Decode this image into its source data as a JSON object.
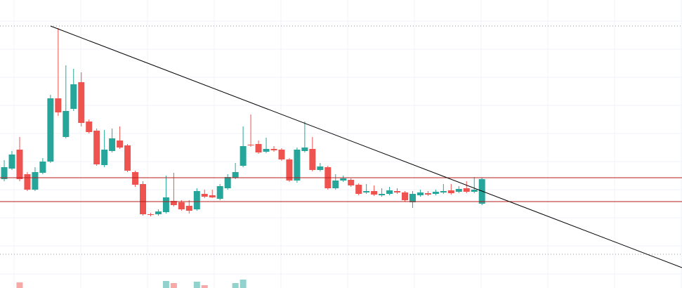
{
  "chart_data": {
    "type": "candlestick",
    "xlim": [
      -0.55,
      87.96
    ],
    "ylim": [
      0,
      410
    ],
    "up_color": "#26a69a",
    "down_color": "#ef5350",
    "open": [
      155,
      170,
      197,
      162,
      140,
      164,
      180,
      270,
      215,
      255,
      293,
      237,
      224,
      175,
      195,
      210,
      203,
      165,
      148,
      105,
      105,
      108,
      124,
      122,
      117,
      112,
      134,
      132,
      127,
      142,
      157,
      174,
      204,
      205,
      194,
      198,
      197,
      183,
      153,
      195,
      198,
      168,
      172,
      142,
      153,
      154,
      147,
      136,
      138,
      132,
      134,
      138,
      136,
      122,
      132,
      135,
      134,
      136,
      139,
      137,
      142,
      137,
      120
    ],
    "close": [
      172,
      190,
      155,
      140,
      165,
      180,
      270,
      250,
      252,
      290,
      235,
      222,
      176,
      197,
      213,
      200,
      167,
      147,
      105,
      104,
      109,
      129,
      118,
      112,
      110,
      138,
      130,
      129,
      145,
      158,
      165,
      202,
      203,
      193,
      198,
      196,
      183,
      153,
      197,
      200,
      168,
      173,
      142,
      153,
      156,
      146,
      134,
      138,
      133,
      134,
      139,
      136,
      125,
      134,
      136,
      133,
      137,
      138,
      135,
      141,
      137,
      140,
      155
    ],
    "high": [
      182,
      195,
      215,
      165,
      172,
      185,
      275,
      370,
      317,
      312,
      307,
      240,
      227,
      225,
      227,
      230,
      205,
      167,
      152,
      107,
      112,
      160,
      164,
      125,
      125,
      142,
      140,
      140,
      148,
      162,
      178,
      230,
      247,
      210,
      214,
      202,
      199,
      185,
      200,
      237,
      215,
      178,
      174,
      162,
      160,
      156,
      149,
      148,
      146,
      142,
      144,
      142,
      138,
      138,
      140,
      138,
      140,
      148,
      148,
      145,
      152,
      158,
      157
    ],
    "low": [
      152,
      168,
      152,
      138,
      138,
      162,
      178,
      245,
      213,
      252,
      230,
      220,
      174,
      172,
      193,
      198,
      165,
      144,
      103,
      102,
      103,
      106,
      116,
      110,
      106,
      110,
      128,
      128,
      125,
      140,
      155,
      172,
      201,
      191,
      192,
      194,
      181,
      151,
      150,
      193,
      166,
      166,
      140,
      140,
      151,
      144,
      132,
      134,
      131,
      130,
      132,
      134,
      123,
      114,
      130,
      131,
      132,
      134,
      133,
      135,
      135,
      135,
      118
    ],
    "volume": [
      null,
      null,
      8,
      null,
      null,
      null,
      null,
      null,
      null,
      null,
      null,
      null,
      null,
      null,
      null,
      null,
      null,
      null,
      null,
      null,
      null,
      10,
      7,
      null,
      null,
      9,
      4,
      null,
      null,
      null,
      7,
      12,
      null,
      null,
      null,
      null,
      null,
      null,
      null,
      null,
      null,
      null,
      null,
      null,
      null,
      null,
      null,
      null,
      null,
      null,
      null,
      null,
      null,
      null,
      null,
      null,
      null,
      null,
      null,
      null,
      null,
      null,
      null
    ],
    "levels": [
      {
        "value": 157,
        "color": "#b71c1c"
      },
      {
        "value": 123,
        "color": "#b71c1c"
      }
    ],
    "dotted_levels": [
      373,
      48
    ],
    "trendline": {
      "x": [
        6,
        87.96
      ],
      "y": [
        373,
        29
      ],
      "color": "#000000"
    },
    "grid": true
  }
}
